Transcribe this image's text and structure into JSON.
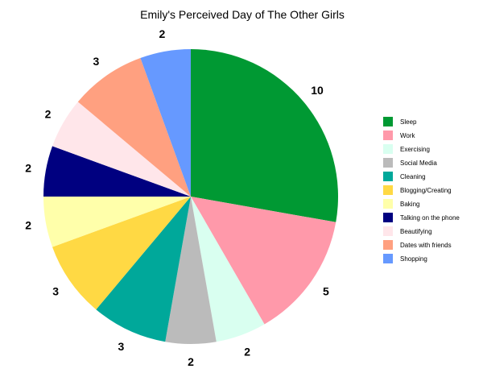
{
  "chart_data": {
    "type": "pie",
    "title": "Emily's Perceived Day of The Other Girls",
    "slices": [
      {
        "label": "Sleep",
        "value": 10,
        "color": "#009933"
      },
      {
        "label": "Work",
        "value": 5,
        "color": "#ff99aa"
      },
      {
        "label": "Exercising",
        "value": 2,
        "color": "#d9fff0"
      },
      {
        "label": "Social Media",
        "value": 2,
        "color": "#bbbbbb"
      },
      {
        "label": "Cleaning",
        "value": 3,
        "color": "#00a89a"
      },
      {
        "label": "Blogging/Creating",
        "value": 3,
        "color": "#ffd944"
      },
      {
        "label": "Baking",
        "value": 2,
        "color": "#ffffaa"
      },
      {
        "label": "Talking on the phone",
        "value": 2,
        "color": "#000080"
      },
      {
        "label": "Beautifying",
        "value": 2,
        "color": "#ffe6ea"
      },
      {
        "label": "Dates with friends",
        "value": 3,
        "color": "#ffa080"
      },
      {
        "label": "Shopping",
        "value": 2,
        "color": "#6699ff"
      }
    ],
    "start_angle": "12 o'clock",
    "direction": "clockwise",
    "legend_position": "right"
  }
}
